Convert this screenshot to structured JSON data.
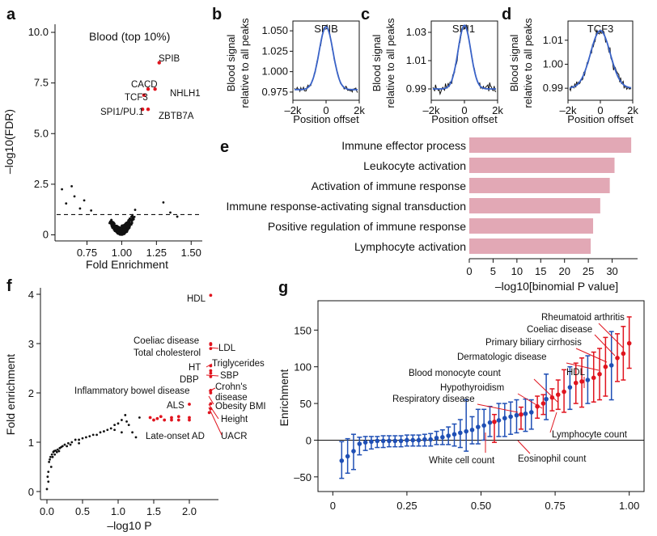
{
  "panels": {
    "a": {
      "label": "a",
      "title": "Blood (top 10%)",
      "xlabel": "Fold Enrichment",
      "ylabel": "–log10(FDR)",
      "xticks": [
        "0.75",
        "1.00",
        "1.25",
        "1.50"
      ],
      "yticks": [
        "0",
        "2.5",
        "5.0",
        "7.5",
        "10.0"
      ],
      "threshold_y": 1.0,
      "xlim": [
        0.52,
        1.58
      ],
      "ylim": [
        -0.3,
        10.4
      ]
    },
    "b": {
      "label": "b",
      "title": "SPIB",
      "yticks": [
        "0.975",
        "1.000",
        "1.025",
        "1.050"
      ],
      "ylim": [
        0.965,
        1.062
      ]
    },
    "c": {
      "label": "c",
      "title": "SPI1",
      "yticks": [
        "0.99",
        "1.01",
        "1.03"
      ],
      "ylim": [
        0.982,
        1.038
      ]
    },
    "d": {
      "label": "d",
      "title": "TCF3",
      "yticks": [
        "0.99",
        "1.00",
        "1.01"
      ],
      "ylim": [
        0.985,
        1.018
      ]
    },
    "motif_common": {
      "ylabel_line1": "Blood signal",
      "ylabel_line2": "relative to all peaks",
      "xlabel": "Position offset",
      "xticks": [
        "–2k",
        "0",
        "2k"
      ]
    },
    "e": {
      "label": "e",
      "xlabel": "–log10[binomial P value]",
      "xticks": [
        "0",
        "5",
        "10",
        "15",
        "20",
        "25",
        "30"
      ]
    },
    "f": {
      "label": "f",
      "xlabel": "–log10 P",
      "ylabel": "Fold enrichment",
      "xticks": [
        "0.0",
        "0.5",
        "1.0",
        "1.5",
        "2.0"
      ],
      "yticks": [
        "0",
        "1",
        "2",
        "3",
        "4"
      ]
    },
    "g": {
      "label": "g",
      "ylabel": "Enrichment",
      "xticks": [
        "0",
        "0.25",
        "0.50",
        "0.75",
        "1.00"
      ],
      "yticks": [
        "–50",
        "0",
        "50",
        "100",
        "150"
      ]
    }
  },
  "chart_data": [
    {
      "panel": "a",
      "type": "scatter",
      "title": "Blood (top 10%)",
      "xlabel": "Fold Enrichment",
      "ylabel": "–log10(FDR)",
      "highlight_color": "#e0141e",
      "highlighted": [
        {
          "name": "SPIB",
          "x": 1.27,
          "y": 8.5
        },
        {
          "name": "CACD",
          "x": 1.19,
          "y": 7.2
        },
        {
          "name": "NHLH1",
          "x": 1.24,
          "y": 7.2
        },
        {
          "name": "TCF3",
          "x": 1.16,
          "y": 6.9
        },
        {
          "name": "SPI1/PU.1",
          "x": 1.15,
          "y": 6.2
        },
        {
          "name": "ZBTB7A",
          "x": 1.19,
          "y": 6.2
        }
      ]
    },
    {
      "panel": "b-d",
      "type": "line",
      "title": "Blood signal relative to all peaks",
      "series": [
        {
          "name": "SPIB",
          "center_peak": 1.055,
          "baseline": 0.978
        },
        {
          "name": "SPI1",
          "center_peak": 1.035,
          "baseline": 0.99
        },
        {
          "name": "TCF3",
          "center_peak": 1.015,
          "baseline": 0.99
        }
      ],
      "x_range": [
        -2000,
        2000
      ]
    },
    {
      "panel": "e",
      "type": "bar",
      "bar_color": "#e2a8b5",
      "categories": [
        "Immune effector process",
        "Leukocyte activation",
        "Activation of immune response",
        "Immune response-activating signal transduction",
        "Positive regulation of immune response",
        "Lymphocyte activation"
      ],
      "values": [
        34,
        30.5,
        29.5,
        27.5,
        26,
        25.5
      ],
      "xlabel": "–log10[binomial P value]",
      "xlim": [
        0,
        35
      ]
    },
    {
      "panel": "f",
      "type": "scatter",
      "xlabel": "–log10 P",
      "ylabel": "Fold enrichment",
      "highlighted": [
        {
          "name": "HDL",
          "x": 2.3,
          "y": 3.98
        },
        {
          "name": "LDL",
          "x": 2.3,
          "y": 3.0
        },
        {
          "name": "Coeliac disease",
          "x": 2.3,
          "y": 2.98
        },
        {
          "name": "Total cholesterol",
          "x": 2.3,
          "y": 2.9
        },
        {
          "name": "Triglycerides",
          "x": 2.3,
          "y": 2.55
        },
        {
          "name": "HT",
          "x": 2.3,
          "y": 2.45
        },
        {
          "name": "SBP",
          "x": 2.3,
          "y": 2.4
        },
        {
          "name": "DBP",
          "x": 2.3,
          "y": 2.33
        },
        {
          "name": "Crohn's disease",
          "x": 2.3,
          "y": 2.05
        },
        {
          "name": "Inflammatory bowel disease",
          "x": 2.3,
          "y": 2.0
        },
        {
          "name": "Obesity BMI",
          "x": 2.3,
          "y": 1.78
        },
        {
          "name": "ALS",
          "x": 2.0,
          "y": 1.77
        },
        {
          "name": "Height",
          "x": 2.3,
          "y": 1.68
        },
        {
          "name": "UACR",
          "x": 2.28,
          "y": 1.6
        },
        {
          "name": "Late-onset AD",
          "x": 1.55,
          "y": 1.48
        }
      ],
      "labels": [
        "HDL",
        "Coeliac disease",
        "LDL",
        "Total cholesterol",
        "Triglycerides",
        "HT",
        "SBP",
        "DBP",
        "Crohn's",
        "disease",
        "Inflammatory bowel disease",
        "Obesity BMI",
        "ALS",
        "Height",
        "Late-onset AD",
        "UACR"
      ]
    },
    {
      "panel": "g",
      "type": "scatter",
      "ylabel": "Enrichment",
      "xlim": [
        -0.05,
        1.05
      ],
      "ylim": [
        -70,
        190
      ],
      "colors": {
        "blue": "#1f4fb5",
        "red": "#e0141e"
      },
      "points": [
        {
          "x": 0.03,
          "y": -28,
          "lo": -52,
          "hi": -2,
          "c": "blue"
        },
        {
          "x": 0.05,
          "y": -22,
          "lo": -45,
          "hi": 2,
          "c": "blue"
        },
        {
          "x": 0.07,
          "y": -15,
          "lo": -40,
          "hi": 8,
          "c": "blue"
        },
        {
          "x": 0.09,
          "y": -5,
          "lo": -20,
          "hi": 4,
          "c": "blue"
        },
        {
          "x": 0.11,
          "y": -3,
          "lo": -14,
          "hi": 5,
          "c": "blue"
        },
        {
          "x": 0.13,
          "y": -2,
          "lo": -12,
          "hi": 5,
          "c": "blue"
        },
        {
          "x": 0.15,
          "y": -1,
          "lo": -10,
          "hi": 5,
          "c": "blue"
        },
        {
          "x": 0.17,
          "y": -1,
          "lo": -10,
          "hi": 6,
          "c": "blue"
        },
        {
          "x": 0.19,
          "y": -1,
          "lo": -9,
          "hi": 6,
          "c": "blue"
        },
        {
          "x": 0.21,
          "y": -1,
          "lo": -9,
          "hi": 6,
          "c": "blue"
        },
        {
          "x": 0.23,
          "y": -1,
          "lo": -9,
          "hi": 6,
          "c": "blue"
        },
        {
          "x": 0.25,
          "y": 0,
          "lo": -8,
          "hi": 7,
          "c": "blue"
        },
        {
          "x": 0.27,
          "y": 0,
          "lo": -8,
          "hi": 7,
          "c": "blue"
        },
        {
          "x": 0.29,
          "y": 0,
          "lo": -8,
          "hi": 7,
          "c": "blue"
        },
        {
          "x": 0.31,
          "y": 1,
          "lo": -8,
          "hi": 8,
          "c": "blue"
        },
        {
          "x": 0.33,
          "y": 1,
          "lo": -8,
          "hi": 9,
          "c": "blue"
        },
        {
          "x": 0.35,
          "y": 3,
          "lo": -6,
          "hi": 12,
          "c": "blue"
        },
        {
          "x": 0.37,
          "y": 4,
          "lo": -6,
          "hi": 14,
          "c": "blue"
        },
        {
          "x": 0.39,
          "y": 6,
          "lo": -6,
          "hi": 18,
          "c": "blue"
        },
        {
          "x": 0.41,
          "y": 8,
          "lo": -8,
          "hi": 22,
          "c": "blue"
        },
        {
          "x": 0.43,
          "y": 10,
          "lo": -10,
          "hi": 28,
          "c": "blue"
        },
        {
          "x": 0.45,
          "y": 12,
          "lo": -15,
          "hi": 55,
          "c": "blue"
        },
        {
          "x": 0.47,
          "y": 14,
          "lo": -5,
          "hi": 32,
          "c": "blue"
        },
        {
          "x": 0.49,
          "y": 18,
          "lo": -5,
          "hi": 42,
          "c": "blue"
        },
        {
          "x": 0.51,
          "y": 20,
          "lo": 0,
          "hi": 42,
          "c": "blue"
        },
        {
          "x": 0.53,
          "y": 24,
          "lo": 5,
          "hi": 46,
          "c": "blue"
        },
        {
          "x": 0.545,
          "y": 25,
          "lo": -3,
          "hi": 35,
          "c": "red"
        },
        {
          "x": 0.56,
          "y": 27,
          "lo": 5,
          "hi": 50,
          "c": "blue"
        },
        {
          "x": 0.58,
          "y": 30,
          "lo": 5,
          "hi": 50,
          "c": "blue"
        },
        {
          "x": 0.6,
          "y": 32,
          "lo": 8,
          "hi": 52,
          "c": "blue"
        },
        {
          "x": 0.62,
          "y": 34,
          "lo": 10,
          "hi": 55,
          "c": "blue"
        },
        {
          "x": 0.635,
          "y": 35,
          "lo": 15,
          "hi": 45,
          "c": "red"
        },
        {
          "x": 0.65,
          "y": 36,
          "lo": 12,
          "hi": 56,
          "c": "blue"
        },
        {
          "x": 0.67,
          "y": 38,
          "lo": 15,
          "hi": 55,
          "c": "blue"
        },
        {
          "x": 0.69,
          "y": 46,
          "lo": 30,
          "hi": 60,
          "c": "red"
        },
        {
          "x": 0.71,
          "y": 50,
          "lo": 35,
          "hi": 62,
          "c": "red"
        },
        {
          "x": 0.72,
          "y": 56,
          "lo": 28,
          "hi": 90,
          "c": "blue"
        },
        {
          "x": 0.74,
          "y": 58,
          "lo": 40,
          "hi": 70,
          "c": "red"
        },
        {
          "x": 0.76,
          "y": 62,
          "lo": 42,
          "hi": 82,
          "c": "red"
        },
        {
          "x": 0.78,
          "y": 66,
          "lo": 38,
          "hi": 96,
          "c": "red"
        },
        {
          "x": 0.8,
          "y": 72,
          "lo": 42,
          "hi": 100,
          "c": "blue"
        },
        {
          "x": 0.82,
          "y": 78,
          "lo": 50,
          "hi": 105,
          "c": "red"
        },
        {
          "x": 0.84,
          "y": 80,
          "lo": 45,
          "hi": 112,
          "c": "red"
        },
        {
          "x": 0.86,
          "y": 82,
          "lo": 50,
          "hi": 115,
          "c": "blue"
        },
        {
          "x": 0.88,
          "y": 85,
          "lo": 52,
          "hi": 120,
          "c": "red"
        },
        {
          "x": 0.9,
          "y": 90,
          "lo": 55,
          "hi": 125,
          "c": "red"
        },
        {
          "x": 0.92,
          "y": 100,
          "lo": 60,
          "hi": 140,
          "c": "red"
        },
        {
          "x": 0.94,
          "y": 102,
          "lo": 55,
          "hi": 148,
          "c": "blue"
        },
        {
          "x": 0.96,
          "y": 112,
          "lo": 80,
          "hi": 145,
          "c": "red"
        },
        {
          "x": 0.98,
          "y": 118,
          "lo": 82,
          "hi": 155,
          "c": "red"
        },
        {
          "x": 1.0,
          "y": 132,
          "lo": 98,
          "hi": 168,
          "c": "red"
        }
      ],
      "labels": [
        "Rheumatoid arthritis",
        "Coeliac disease",
        "Primary biliary cirrhosis",
        "Dermatologic disease",
        "HDL",
        "Blood monocyte count",
        "Hypothyroidism",
        "Respiratory disease",
        "Lymphocyte count",
        "White cell count",
        "Eosinophil count"
      ]
    }
  ]
}
